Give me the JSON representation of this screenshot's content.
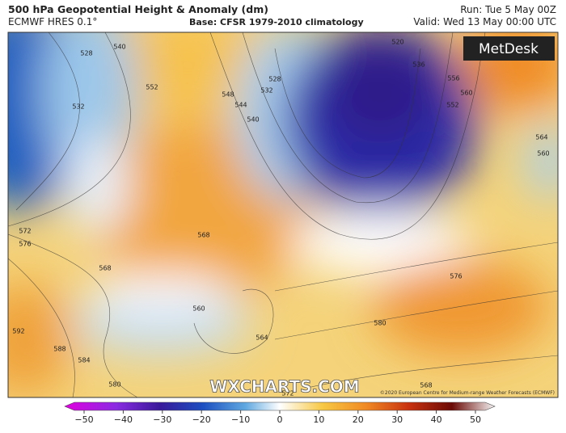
{
  "header": {
    "title": "500 hPa Geopotential Height & Anomaly (dm)",
    "model": "ECMWF HRES 0.1°",
    "base": "Base: CFSR 1979-2010 climatology",
    "run": "Run: Tue 5 May 00Z",
    "valid": "Valid: Wed 13 May 00:00 UTC"
  },
  "map": {
    "logo": "MetDesk",
    "watermark": "WXCHARTS.COM",
    "copyright": "©2020 European Centre for Medium-range Weather Forecasts (ECMWF)",
    "contour_labels": [
      528,
      540,
      532,
      552,
      548,
      544,
      540,
      532,
      528,
      520,
      536,
      556,
      552,
      560,
      564,
      560,
      572,
      576,
      568,
      568,
      560,
      564,
      576,
      580,
      592,
      588,
      584,
      580,
      572,
      568
    ]
  },
  "colorbar": {
    "lim": [
      -50,
      50
    ],
    "ticks": [
      {
        "value": -50,
        "label": "−50"
      },
      {
        "value": -40,
        "label": "−40"
      },
      {
        "value": -30,
        "label": "−30"
      },
      {
        "value": -20,
        "label": "−20"
      },
      {
        "value": -10,
        "label": "−10"
      },
      0,
      10,
      20,
      30,
      40,
      50
    ]
  }
}
